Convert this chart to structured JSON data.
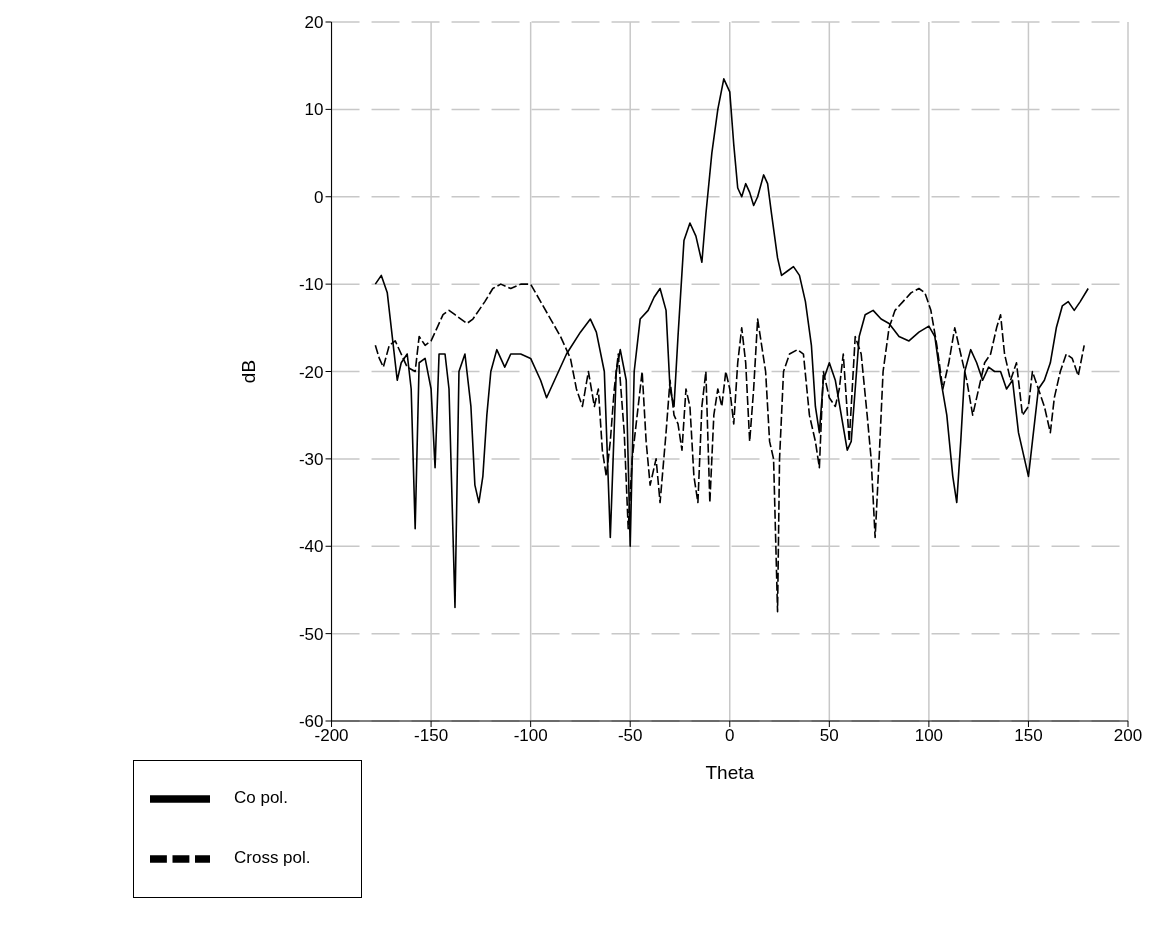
{
  "chart_data": {
    "type": "line",
    "xlabel": "Theta",
    "ylabel": "dB",
    "xlim": [
      -200,
      200
    ],
    "xticks": [
      -200,
      -150,
      -100,
      -50,
      0,
      50,
      100,
      150,
      200
    ],
    "ylim": [
      -60,
      20
    ],
    "yticks": [
      -60,
      -50,
      -40,
      -30,
      -20,
      -10,
      0,
      10,
      20
    ],
    "grid": true,
    "legend": "bottom left",
    "marker": "none",
    "series": [
      {
        "name": "Co pol.",
        "color": "#000000",
        "line_style": "solid",
        "x": [
          -178,
          -175,
          -172,
          -169,
          -167,
          -165,
          -162,
          -160,
          -158,
          -156,
          -153,
          -150,
          -148,
          -146,
          -143,
          -141,
          -138,
          -136,
          -133,
          -130,
          -128,
          -126,
          -124,
          -122,
          -120,
          -117,
          -113,
          -110,
          -105,
          -100,
          -95,
          -92,
          -88,
          -82,
          -75,
          -70,
          -67,
          -63,
          -60,
          -57,
          -55,
          -52,
          -50,
          -48,
          -45,
          -41,
          -38,
          -35,
          -32,
          -30,
          -28,
          -26,
          -23,
          -20,
          -17,
          -14,
          -12,
          -9,
          -6,
          -3,
          0,
          2,
          4,
          6,
          8,
          10,
          12,
          14,
          17,
          19,
          21,
          24,
          26,
          29,
          32,
          35,
          38,
          41,
          43,
          45,
          47,
          50,
          53,
          56,
          59,
          61,
          63,
          65,
          68,
          72,
          76,
          80,
          85,
          90,
          95,
          100,
          103,
          106,
          109,
          112,
          114,
          116,
          118,
          121,
          124,
          127,
          130,
          133,
          136,
          139,
          142,
          145,
          148,
          150,
          152,
          155,
          158,
          161,
          164,
          167,
          170,
          173,
          176,
          180
        ],
        "values": [
          -10,
          -9,
          -11,
          -17,
          -21,
          -19,
          -18,
          -22,
          -38,
          -19,
          -18.5,
          -22,
          -31,
          -18,
          -18,
          -22,
          -47,
          -20,
          -18,
          -24,
          -33,
          -35,
          -32,
          -25,
          -20,
          -17.5,
          -19.5,
          -18,
          -18,
          -18.5,
          -21,
          -23,
          -21,
          -18,
          -15.5,
          -14,
          -15.5,
          -20,
          -39,
          -20,
          -17.5,
          -21,
          -40,
          -20,
          -14,
          -13,
          -11.5,
          -10.5,
          -13,
          -22,
          -24,
          -16,
          -5,
          -3,
          -4.5,
          -7.5,
          -2,
          5,
          10,
          13.5,
          12,
          6,
          1,
          0,
          1.5,
          0.5,
          -1,
          0,
          2.5,
          1.5,
          -2,
          -7,
          -9,
          -8.5,
          -8,
          -9,
          -12,
          -17,
          -24,
          -27,
          -21,
          -19,
          -21,
          -25,
          -29,
          -28,
          -22,
          -16,
          -13.5,
          -13,
          -14,
          -14.5,
          -16,
          -16.5,
          -15.5,
          -14.8,
          -16,
          -21,
          -25,
          -32,
          -35,
          -28,
          -20,
          -17.5,
          -19,
          -21,
          -19.5,
          -20,
          -20,
          -22,
          -21,
          -27,
          -30,
          -32,
          -28,
          -22,
          -21,
          -19,
          -15,
          -12.5,
          -12,
          -13,
          -12,
          -10.5
        ]
      },
      {
        "name": "Cross pol.",
        "color": "#000000",
        "line_style": "dashed",
        "x": [
          -178,
          -176,
          -174,
          -171,
          -168,
          -165,
          -162,
          -158,
          -156,
          -153,
          -150,
          -147,
          -144,
          -141,
          -138,
          -135,
          -132,
          -129,
          -126,
          -123,
          -119,
          -115,
          -110,
          -105,
          -100,
          -95,
          -90,
          -85,
          -80,
          -77,
          -74,
          -71,
          -68,
          -66,
          -64,
          -62,
          -60,
          -58,
          -56,
          -53,
          -51,
          -49,
          -47,
          -44,
          -42,
          -40,
          -37,
          -35,
          -32,
          -30,
          -28,
          -26,
          -24,
          -22,
          -20,
          -18,
          -16,
          -14,
          -12,
          -10,
          -8,
          -6,
          -4,
          -2,
          0,
          2,
          4,
          6,
          8,
          10,
          12,
          14,
          16,
          18,
          20,
          22,
          24,
          25,
          27,
          30,
          34,
          37,
          40,
          43,
          45,
          47,
          50,
          53,
          55,
          57,
          60,
          63,
          66,
          69,
          71,
          73,
          75,
          77,
          80,
          83,
          87,
          91,
          95,
          98,
          101,
          104,
          107,
          110,
          113,
          116,
          119,
          122,
          125,
          128,
          131,
          134,
          136,
          138,
          141,
          144,
          147,
          150,
          152,
          155,
          158,
          161,
          163,
          166,
          169,
          172,
          175,
          178
        ],
        "values": [
          -17,
          -18.5,
          -19.5,
          -17,
          -16.5,
          -18,
          -19.5,
          -20,
          -16,
          -17,
          -16.5,
          -15,
          -13.5,
          -13,
          -13.5,
          -14,
          -14.5,
          -14,
          -13,
          -12,
          -10.5,
          -10,
          -10.5,
          -10,
          -10,
          -12,
          -14,
          -16,
          -18.5,
          -22,
          -24,
          -20,
          -24,
          -22,
          -29,
          -32,
          -28,
          -22,
          -18,
          -27,
          -38,
          -30,
          -26,
          -20,
          -28,
          -33,
          -30,
          -35,
          -27,
          -21,
          -25,
          -26,
          -29,
          -22,
          -24,
          -32,
          -35,
          -24,
          -20,
          -35,
          -25,
          -22,
          -24,
          -20,
          -22,
          -26,
          -19,
          -15,
          -19,
          -28,
          -22,
          -14,
          -17,
          -20,
          -28,
          -30,
          -47.5,
          -30,
          -20,
          -18,
          -17.5,
          -18,
          -25,
          -28,
          -31,
          -20,
          -23,
          -24,
          -22,
          -18,
          -28,
          -16,
          -18,
          -25,
          -30,
          -39,
          -30,
          -20,
          -15,
          -13,
          -12,
          -11,
          -10.5,
          -11,
          -13,
          -17,
          -22,
          -19,
          -15,
          -18,
          -21,
          -25,
          -22,
          -19,
          -18,
          -15,
          -13.5,
          -18,
          -21,
          -19,
          -25,
          -24,
          -20,
          -22,
          -24,
          -27,
          -23,
          -20,
          -18,
          -18.5,
          -20.5,
          -17
        ]
      }
    ]
  }
}
